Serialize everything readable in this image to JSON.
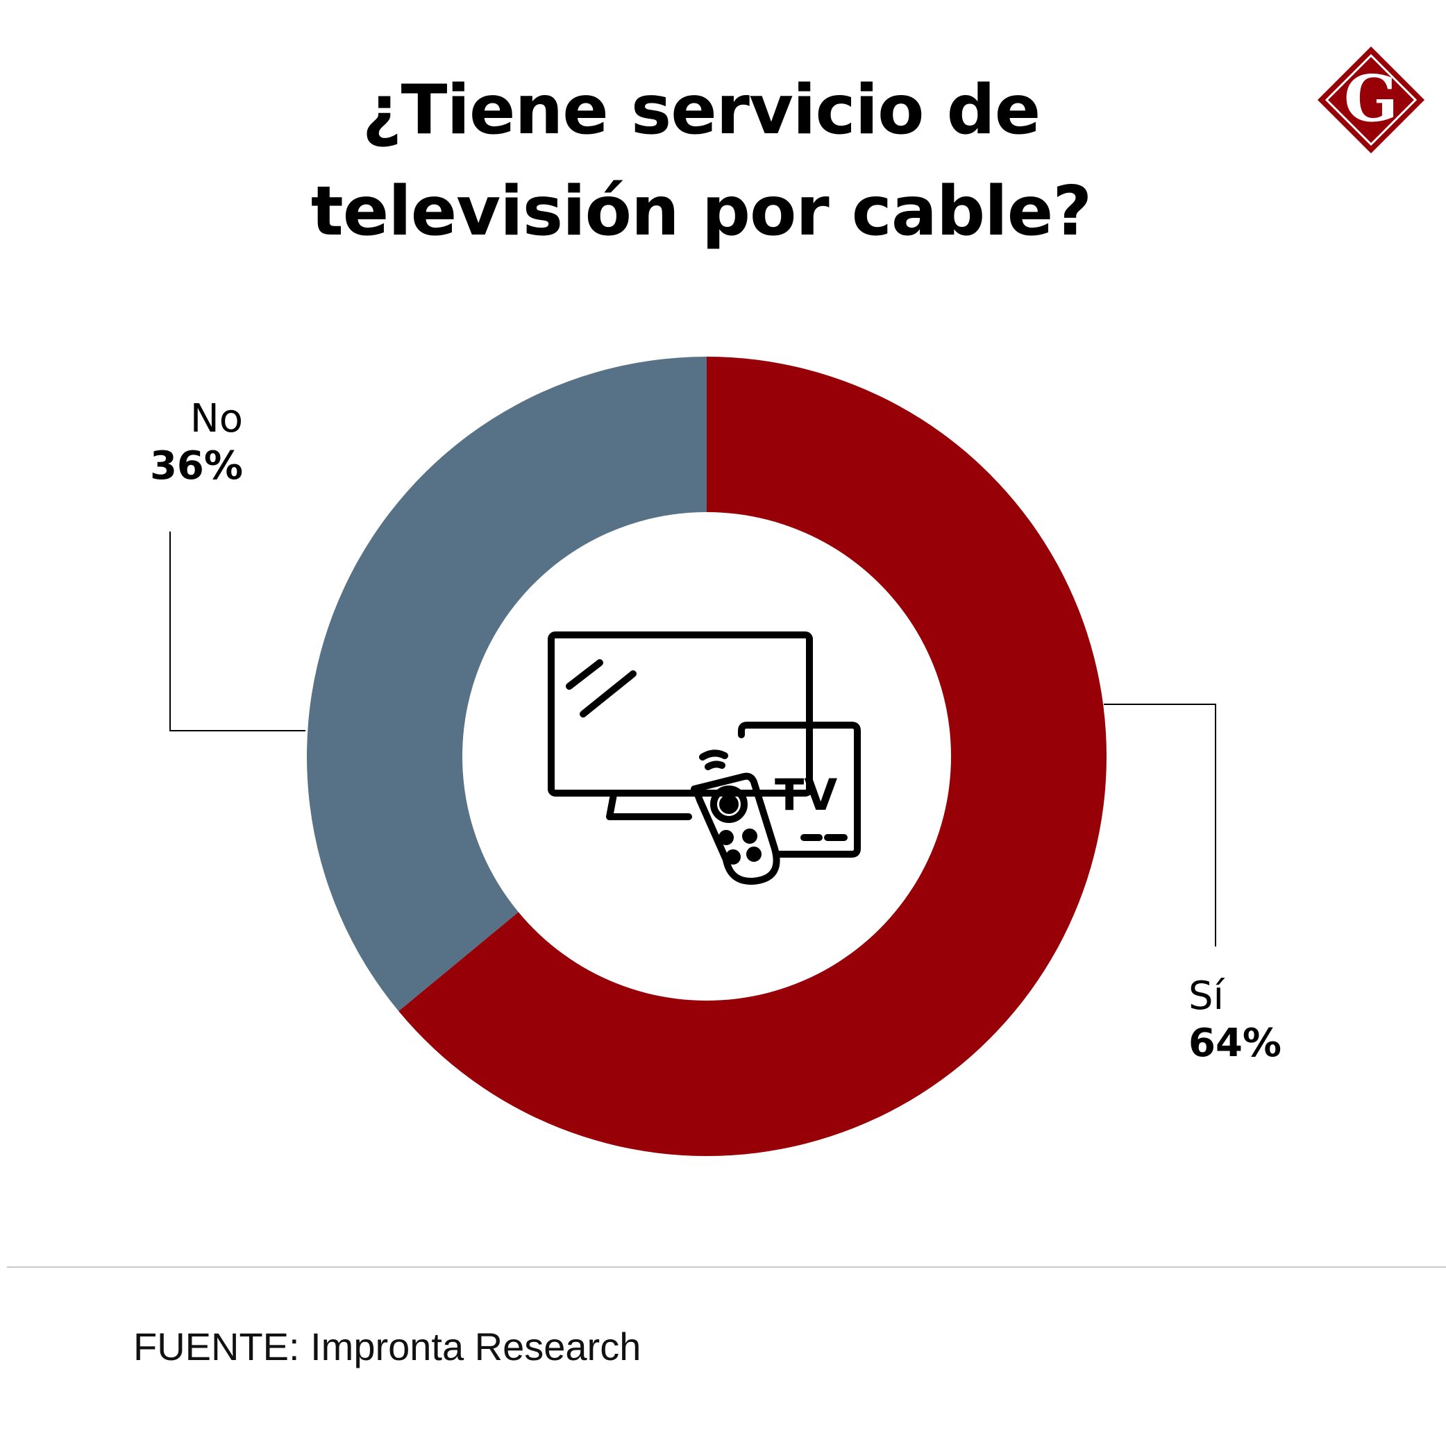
{
  "title_lines": [
    "¿Tiene servicio de",
    "televisión por cable?"
  ],
  "logo": {
    "letter": "G",
    "color": "#960006",
    "icon": "g-diamond-logo-icon"
  },
  "center_icon": {
    "icon": "tv-remote-icon",
    "text": "TV"
  },
  "chart_data": {
    "type": "pie",
    "donut": true,
    "title": "¿Tiene servicio de televisión por cable?",
    "slices": [
      {
        "label": "Sí",
        "value": 64,
        "value_label": "64%",
        "color": "#960006"
      },
      {
        "label": "No",
        "value": 36,
        "value_label": "36%",
        "color": "#577286"
      }
    ],
    "start": "top",
    "direction": "clockwise",
    "legend": "none"
  },
  "source": "FUENTE: Impronta Research"
}
